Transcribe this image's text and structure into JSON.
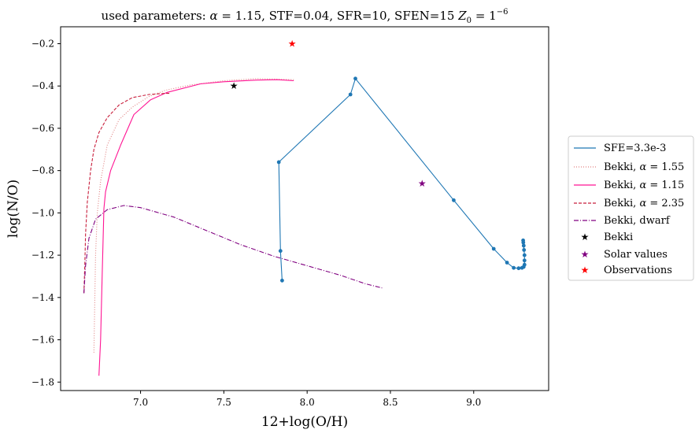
{
  "chart_data": {
    "type": "line",
    "title_parts": {
      "prefix": "used parameters: ",
      "alpha_symbol": "α",
      "alpha_eq": " = 1.15",
      "params": ", STF=0.04, SFR=10, SFEN=15 ",
      "z_symbol": "Z",
      "z_sub": "0",
      "z_eq": " = 1",
      "z_exp": "−6"
    },
    "xlabel": "12+log(O/H)",
    "ylabel": "log(N/O)",
    "xlim": [
      6.52,
      9.45
    ],
    "ylim": [
      -1.84,
      -0.12
    ],
    "xticks": [
      7.0,
      7.5,
      8.0,
      8.5,
      9.0
    ],
    "xtick_labels": [
      "7.0",
      "7.5",
      "8.0",
      "8.5",
      "9.0"
    ],
    "yticks": [
      -1.8,
      -1.6,
      -1.4,
      -1.2,
      -1.0,
      -0.8,
      -0.6,
      -0.4,
      -0.2
    ],
    "ytick_labels": [
      "−1.8",
      "−1.6",
      "−1.4",
      "−1.2",
      "−1.0",
      "−0.8",
      "−0.6",
      "−0.4",
      "−0.2"
    ],
    "grid": false,
    "legend_position": "outside-right",
    "series": [
      {
        "id": "sfe",
        "name": "SFE=3.3e-3",
        "color": "#1f77b4",
        "style": "solid",
        "markers": true,
        "points": [
          [
            7.85,
            -1.32
          ],
          [
            7.84,
            -1.18
          ],
          [
            7.83,
            -0.76
          ],
          [
            8.26,
            -0.44
          ],
          [
            8.29,
            -0.365
          ],
          [
            8.88,
            -0.94
          ],
          [
            9.12,
            -1.17
          ],
          [
            9.2,
            -1.235
          ],
          [
            9.24,
            -1.26
          ],
          [
            9.27,
            -1.262
          ],
          [
            9.29,
            -1.26
          ],
          [
            9.3,
            -1.255
          ],
          [
            9.305,
            -1.245
          ],
          [
            9.305,
            -1.225
          ],
          [
            9.305,
            -1.2
          ],
          [
            9.302,
            -1.175
          ],
          [
            9.3,
            -1.155
          ],
          [
            9.298,
            -1.14
          ],
          [
            9.297,
            -1.13
          ]
        ]
      },
      {
        "id": "bekki155",
        "name_prefix": "Bekki, ",
        "alpha_symbol": "α",
        "alpha_value": " = 1.55",
        "color": "#e08080",
        "style": "dotted",
        "markers": false,
        "points": [
          [
            6.72,
            -1.66
          ],
          [
            6.73,
            -1.2
          ],
          [
            6.74,
            -1.0
          ],
          [
            6.76,
            -0.85
          ],
          [
            6.8,
            -0.68
          ],
          [
            6.87,
            -0.56
          ],
          [
            6.95,
            -0.5
          ],
          [
            7.05,
            -0.45
          ],
          [
            7.15,
            -0.42
          ],
          [
            7.3,
            -0.395
          ],
          [
            7.5,
            -0.375
          ],
          [
            7.7,
            -0.365
          ],
          [
            7.92,
            -0.37
          ]
        ]
      },
      {
        "id": "bekki115",
        "name_prefix": "Bekki, ",
        "alpha_symbol": "α",
        "alpha_value": " = 1.15",
        "color": "#ff1493",
        "style": "solid",
        "markers": false,
        "points": [
          [
            6.75,
            -1.77
          ],
          [
            6.76,
            -1.6
          ],
          [
            6.77,
            -1.28
          ],
          [
            6.78,
            -0.98
          ],
          [
            6.79,
            -0.9
          ],
          [
            6.82,
            -0.8
          ],
          [
            6.88,
            -0.68
          ],
          [
            6.96,
            -0.535
          ],
          [
            7.06,
            -0.465
          ],
          [
            7.16,
            -0.43
          ],
          [
            7.36,
            -0.39
          ],
          [
            7.5,
            -0.38
          ],
          [
            7.7,
            -0.372
          ],
          [
            7.82,
            -0.37
          ],
          [
            7.92,
            -0.375
          ]
        ]
      },
      {
        "id": "bekki235",
        "name_prefix": "Bekki, ",
        "alpha_symbol": "α",
        "alpha_value": " = 2.35",
        "color": "#c81e3c",
        "style": "dashed",
        "markers": false,
        "points": [
          [
            6.66,
            -1.38
          ],
          [
            6.665,
            -1.25
          ],
          [
            6.67,
            -1.1
          ],
          [
            6.68,
            -0.95
          ],
          [
            6.7,
            -0.8
          ],
          [
            6.72,
            -0.7
          ],
          [
            6.75,
            -0.62
          ],
          [
            6.8,
            -0.55
          ],
          [
            6.87,
            -0.49
          ],
          [
            6.95,
            -0.455
          ],
          [
            7.05,
            -0.44
          ],
          [
            7.15,
            -0.435
          ],
          [
            7.18,
            -0.435
          ]
        ]
      },
      {
        "id": "dwarf",
        "name": "Bekki, dwarf",
        "color": "#800080",
        "style": "dashdot",
        "markers": false,
        "points": [
          [
            6.66,
            -1.38
          ],
          [
            6.67,
            -1.25
          ],
          [
            6.69,
            -1.12
          ],
          [
            6.73,
            -1.03
          ],
          [
            6.8,
            -0.985
          ],
          [
            6.9,
            -0.965
          ],
          [
            7.0,
            -0.975
          ],
          [
            7.2,
            -1.02
          ],
          [
            7.4,
            -1.085
          ],
          [
            7.6,
            -1.15
          ],
          [
            7.8,
            -1.205
          ],
          [
            8.0,
            -1.25
          ],
          [
            8.2,
            -1.295
          ],
          [
            8.35,
            -1.335
          ],
          [
            8.45,
            -1.355
          ]
        ]
      }
    ],
    "scatter": [
      {
        "id": "bekki-star",
        "name": "Bekki",
        "color": "#000000",
        "x": 7.56,
        "y": -0.4
      },
      {
        "id": "solar-star",
        "name": "Solar values",
        "color": "#800080",
        "x": 8.69,
        "y": -0.86
      },
      {
        "id": "obs-star",
        "name": "Observations",
        "color": "#ff0000",
        "x": 7.91,
        "y": -0.2
      }
    ]
  }
}
